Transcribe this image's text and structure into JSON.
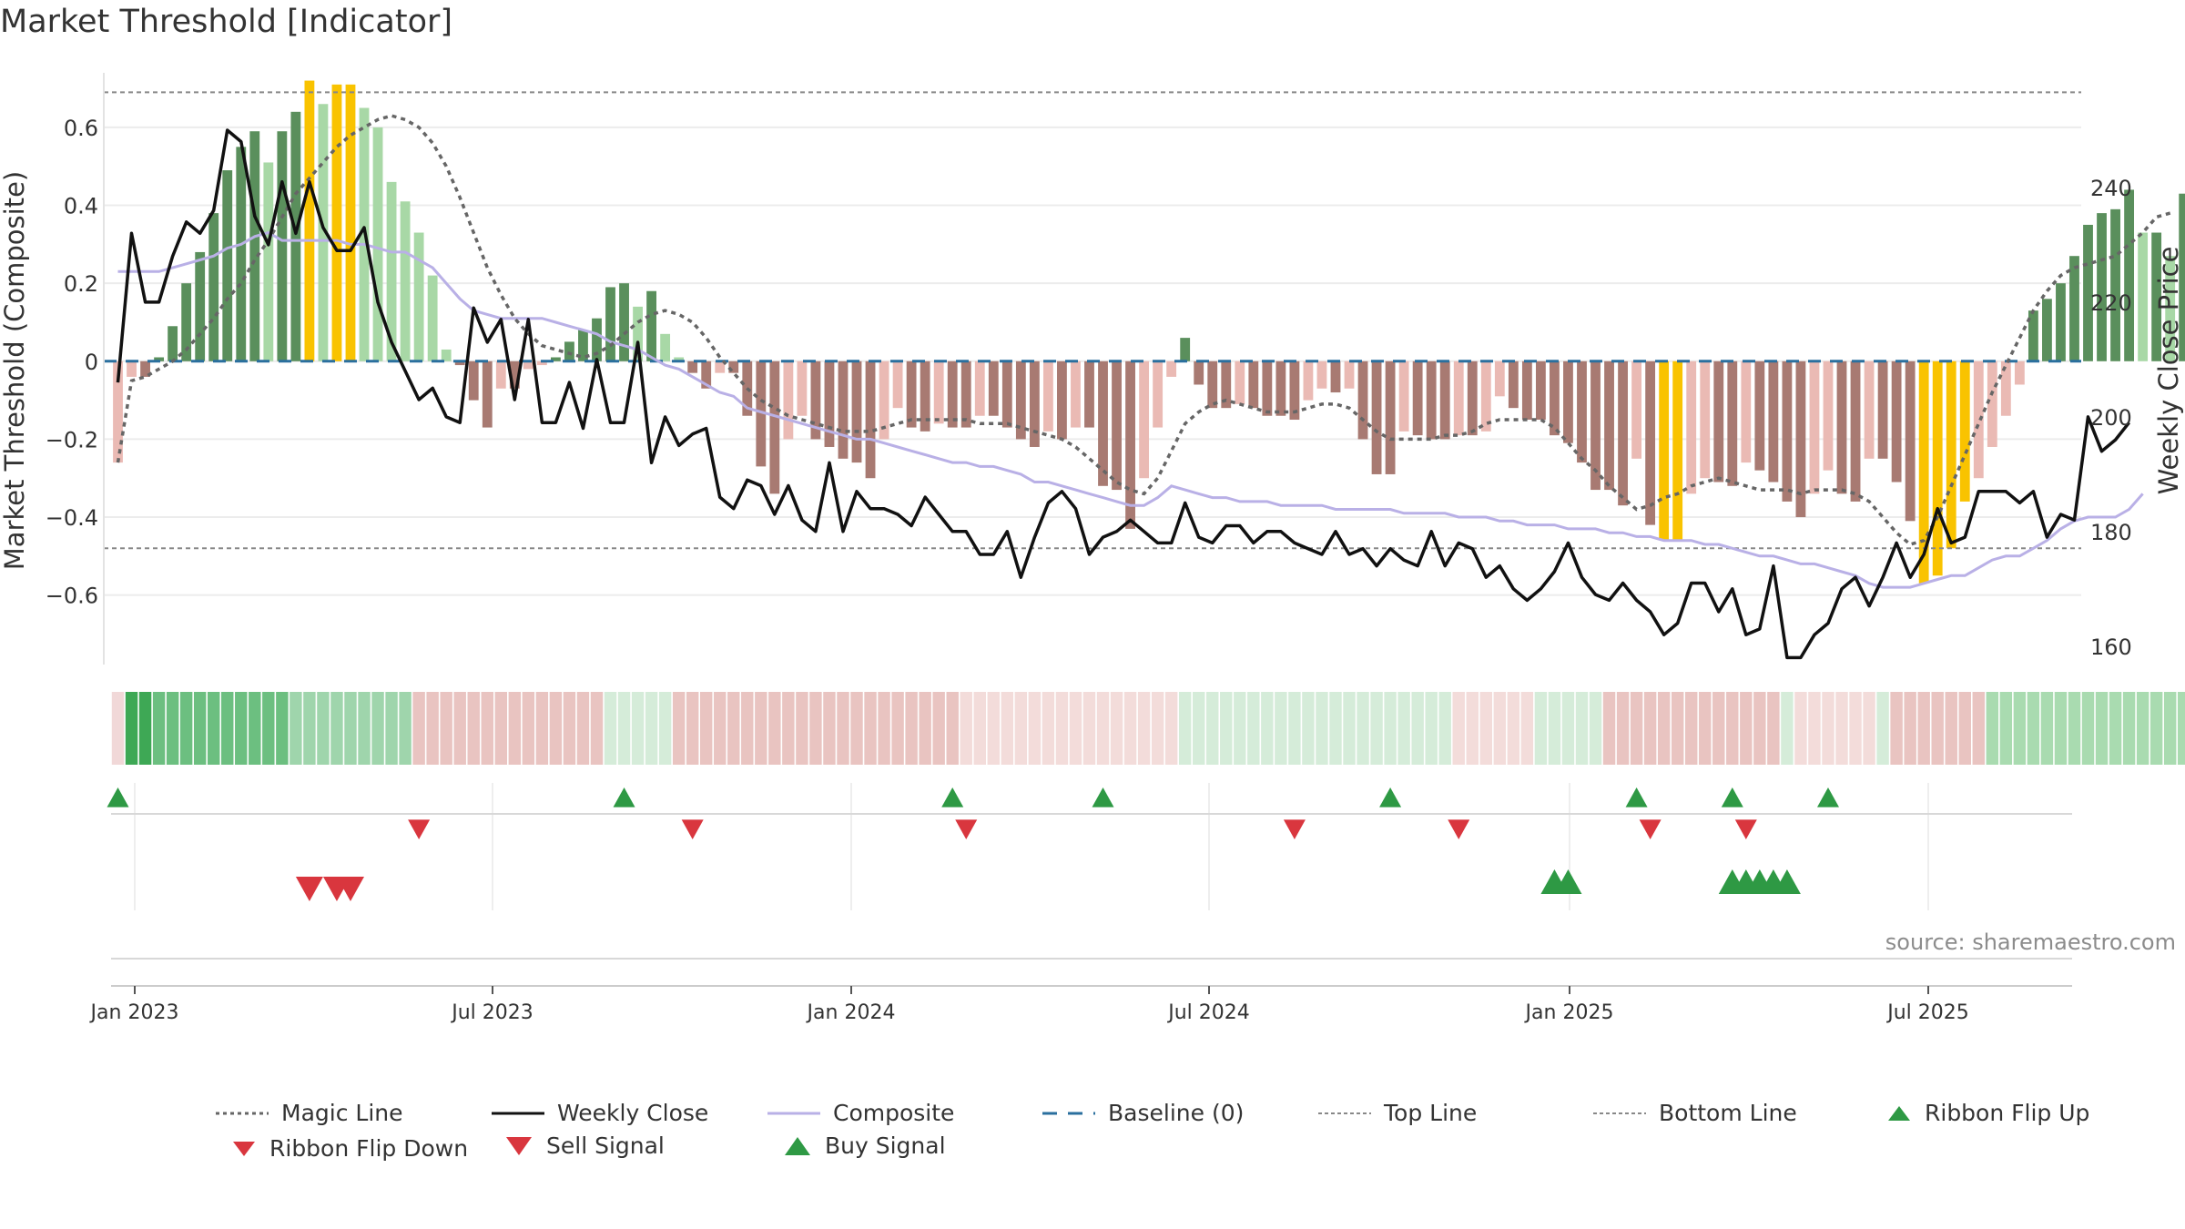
{
  "title": "Market Threshold [Indicator]",
  "source": "source: sharemaestro.com",
  "colors": {
    "bull_dark": "#5a8f5c",
    "bull_light": "#a8d8a6",
    "bear_dark": "#a87a72",
    "bear_light": "#eabab4",
    "extreme": "#f9c300",
    "magic": "#666666",
    "close": "#111111",
    "composite": "#b9b0e6",
    "baseline": "#2a6f9e",
    "ref_lines": "#888888",
    "buy": "#2e9944",
    "sell": "#d9363e"
  },
  "chart_data": {
    "type": "bar",
    "y_left_label": "Market Threshold (Composite)",
    "y_right_label": "Weekly Close Price",
    "y_left_ticks": [
      "0.6",
      "0.4",
      "0.2",
      "0",
      "−0.2",
      "−0.4",
      "−0.6"
    ],
    "y_left_tick_values": [
      0.6,
      0.4,
      0.2,
      0,
      -0.2,
      -0.4,
      -0.6
    ],
    "y_left_range": [
      -0.79,
      0.74
    ],
    "y_right_ticks": [
      "240",
      "220",
      "200",
      "180",
      "160"
    ],
    "y_right_tick_values": [
      240,
      220,
      200,
      180,
      160
    ],
    "y_right_range": [
      156,
      260
    ],
    "x_ticks": [
      "Jan 2023",
      "Jul 2023",
      "Jan 2024",
      "Jul 2024",
      "Jan 2025",
      "Jul 2025"
    ],
    "top_line": 0.69,
    "bottom_line": -0.48,
    "baseline": 0,
    "weeks": 144,
    "composite_bars": [
      -0.26,
      -0.04,
      -0.04,
      0.01,
      0.09,
      0.2,
      0.28,
      0.38,
      0.49,
      0.55,
      0.59,
      0.51,
      0.59,
      0.64,
      0.72,
      0.66,
      0.71,
      0.71,
      0.65,
      0.6,
      0.46,
      0.41,
      0.33,
      0.22,
      0.03,
      -0.01,
      -0.1,
      -0.17,
      -0.07,
      -0.07,
      -0.02,
      -0.01,
      0.01,
      0.05,
      0.08,
      0.11,
      0.19,
      0.2,
      0.14,
      0.18,
      0.07,
      0.01,
      -0.03,
      -0.07,
      -0.03,
      -0.03,
      -0.14,
      -0.27,
      -0.34,
      -0.2,
      -0.14,
      -0.2,
      -0.22,
      -0.25,
      -0.26,
      -0.3,
      -0.2,
      -0.12,
      -0.17,
      -0.18,
      -0.16,
      -0.17,
      -0.17,
      -0.14,
      -0.14,
      -0.17,
      -0.2,
      -0.22,
      -0.18,
      -0.2,
      -0.17,
      -0.17,
      -0.32,
      -0.33,
      -0.43,
      -0.3,
      -0.17,
      -0.04,
      0.06,
      -0.06,
      -0.12,
      -0.12,
      -0.11,
      -0.12,
      -0.14,
      -0.14,
      -0.15,
      -0.1,
      -0.07,
      -0.08,
      -0.07,
      -0.2,
      -0.29,
      -0.29,
      -0.18,
      -0.19,
      -0.2,
      -0.2,
      -0.19,
      -0.19,
      -0.18,
      -0.09,
      -0.12,
      -0.15,
      -0.15,
      -0.19,
      -0.21,
      -0.26,
      -0.33,
      -0.33,
      -0.37,
      -0.25,
      -0.42,
      -0.46,
      -0.46,
      -0.34,
      -0.3,
      -0.31,
      -0.32,
      -0.26,
      -0.28,
      -0.31,
      -0.36,
      -0.4,
      -0.34,
      -0.28,
      -0.34,
      -0.36,
      -0.25,
      -0.25,
      -0.31,
      -0.41,
      -0.57,
      -0.55,
      -0.48,
      -0.36,
      -0.3,
      -0.22,
      -0.14,
      -0.06,
      0.13,
      0.16,
      0.2,
      0.27,
      0.35,
      0.38,
      0.39,
      0.44,
      0.33,
      0.33,
      0.27,
      0.43
    ],
    "extreme_weeks": [
      14,
      16,
      17,
      113,
      114,
      132,
      133,
      134,
      135
    ],
    "magic_line": [
      -0.26,
      -0.05,
      -0.04,
      -0.02,
      0.0,
      0.03,
      0.07,
      0.11,
      0.16,
      0.2,
      0.26,
      0.31,
      0.37,
      0.43,
      0.47,
      0.51,
      0.55,
      0.58,
      0.6,
      0.62,
      0.63,
      0.62,
      0.6,
      0.56,
      0.5,
      0.42,
      0.33,
      0.24,
      0.17,
      0.11,
      0.07,
      0.04,
      0.03,
      0.02,
      0.01,
      0.02,
      0.04,
      0.07,
      0.1,
      0.12,
      0.13,
      0.12,
      0.1,
      0.06,
      0.01,
      -0.03,
      -0.07,
      -0.1,
      -0.12,
      -0.14,
      -0.15,
      -0.16,
      -0.17,
      -0.18,
      -0.18,
      -0.18,
      -0.17,
      -0.16,
      -0.15,
      -0.15,
      -0.15,
      -0.15,
      -0.15,
      -0.16,
      -0.16,
      -0.16,
      -0.17,
      -0.18,
      -0.19,
      -0.2,
      -0.22,
      -0.25,
      -0.28,
      -0.31,
      -0.33,
      -0.34,
      -0.3,
      -0.23,
      -0.16,
      -0.13,
      -0.11,
      -0.1,
      -0.11,
      -0.12,
      -0.13,
      -0.13,
      -0.13,
      -0.12,
      -0.11,
      -0.11,
      -0.12,
      -0.15,
      -0.18,
      -0.2,
      -0.2,
      -0.2,
      -0.2,
      -0.19,
      -0.19,
      -0.18,
      -0.16,
      -0.15,
      -0.15,
      -0.15,
      -0.15,
      -0.17,
      -0.21,
      -0.25,
      -0.28,
      -0.32,
      -0.35,
      -0.38,
      -0.37,
      -0.35,
      -0.34,
      -0.32,
      -0.31,
      -0.3,
      -0.31,
      -0.32,
      -0.33,
      -0.33,
      -0.33,
      -0.34,
      -0.33,
      -0.33,
      -0.33,
      -0.34,
      -0.36,
      -0.4,
      -0.44,
      -0.47,
      -0.46,
      -0.4,
      -0.32,
      -0.24,
      -0.16,
      -0.08,
      -0.01,
      0.06,
      0.13,
      0.18,
      0.22,
      0.24,
      0.25,
      0.26,
      0.27,
      0.3,
      0.33,
      0.37,
      0.38
    ],
    "composite_line": [
      0.23,
      0.23,
      0.23,
      0.23,
      0.24,
      0.25,
      0.26,
      0.27,
      0.29,
      0.3,
      0.32,
      0.33,
      0.31,
      0.31,
      0.31,
      0.31,
      0.31,
      0.3,
      0.3,
      0.29,
      0.28,
      0.28,
      0.26,
      0.24,
      0.2,
      0.16,
      0.13,
      0.12,
      0.11,
      0.11,
      0.11,
      0.11,
      0.1,
      0.09,
      0.08,
      0.07,
      0.05,
      0.04,
      0.03,
      0.01,
      -0.01,
      -0.02,
      -0.04,
      -0.06,
      -0.08,
      -0.09,
      -0.12,
      -0.13,
      -0.14,
      -0.15,
      -0.16,
      -0.17,
      -0.18,
      -0.19,
      -0.2,
      -0.2,
      -0.21,
      -0.22,
      -0.23,
      -0.24,
      -0.25,
      -0.26,
      -0.26,
      -0.27,
      -0.27,
      -0.28,
      -0.29,
      -0.31,
      -0.31,
      -0.32,
      -0.33,
      -0.34,
      -0.35,
      -0.36,
      -0.37,
      -0.37,
      -0.35,
      -0.32,
      -0.33,
      -0.34,
      -0.35,
      -0.35,
      -0.36,
      -0.36,
      -0.36,
      -0.37,
      -0.37,
      -0.37,
      -0.37,
      -0.38,
      -0.38,
      -0.38,
      -0.38,
      -0.38,
      -0.39,
      -0.39,
      -0.39,
      -0.39,
      -0.4,
      -0.4,
      -0.4,
      -0.41,
      -0.41,
      -0.42,
      -0.42,
      -0.42,
      -0.43,
      -0.43,
      -0.43,
      -0.44,
      -0.44,
      -0.45,
      -0.45,
      -0.46,
      -0.46,
      -0.46,
      -0.47,
      -0.47,
      -0.48,
      -0.49,
      -0.5,
      -0.5,
      -0.51,
      -0.52,
      -0.52,
      -0.53,
      -0.54,
      -0.55,
      -0.57,
      -0.58,
      -0.58,
      -0.58,
      -0.57,
      -0.56,
      -0.55,
      -0.55,
      -0.53,
      -0.51,
      -0.5,
      -0.5,
      -0.48,
      -0.46,
      -0.43,
      -0.41,
      -0.4,
      -0.4,
      -0.4,
      -0.38,
      -0.34
    ],
    "weekly_close": [
      206,
      232,
      220,
      220,
      228,
      234,
      232,
      236,
      250,
      248,
      235,
      230,
      241,
      232,
      241,
      233,
      229,
      229,
      233,
      220,
      213,
      208,
      203,
      205,
      200,
      199,
      219,
      213,
      217,
      203,
      217,
      199,
      199,
      206,
      198,
      210,
      199,
      199,
      213,
      192,
      200,
      195,
      197,
      198,
      186,
      184,
      189,
      188,
      183,
      188,
      182,
      180,
      192,
      180,
      187,
      184,
      184,
      183,
      181,
      186,
      183,
      180,
      180,
      176,
      176,
      180,
      172,
      179,
      185,
      187,
      184,
      176,
      179,
      180,
      182,
      180,
      178,
      178,
      185,
      179,
      178,
      181,
      181,
      178,
      180,
      180,
      178,
      177,
      176,
      180,
      176,
      177,
      174,
      177,
      175,
      174,
      180,
      174,
      178,
      177,
      172,
      174,
      170,
      168,
      170,
      173,
      178,
      172,
      169,
      168,
      171,
      168,
      166,
      162,
      164,
      171,
      171,
      166,
      170,
      162,
      163,
      174,
      158,
      158,
      162,
      164,
      170,
      172,
      167,
      172,
      178,
      172,
      176,
      184,
      178,
      179,
      187,
      187,
      187,
      185,
      187,
      179,
      183,
      182,
      200,
      194,
      196,
      199
    ],
    "ribbon": [
      "b1",
      "B3",
      "B3",
      "B2",
      "B2",
      "B2",
      "B2",
      "B2",
      "B2",
      "B2",
      "B2",
      "B2",
      "B2",
      "B1",
      "B1",
      "B1",
      "B1",
      "B1",
      "B1",
      "B1",
      "B1",
      "B1",
      "r2",
      "r2",
      "r2",
      "r2",
      "r2",
      "r2",
      "r2",
      "r2",
      "r2",
      "r2",
      "r2",
      "r2",
      "r2",
      "r2",
      "g1",
      "g1",
      "g1",
      "g1",
      "g1",
      "r2",
      "r2",
      "r2",
      "r2",
      "r2",
      "r2",
      "r2",
      "r2",
      "r2",
      "r2",
      "r2",
      "r2",
      "r2",
      "r2",
      "r2",
      "r2",
      "r2",
      "r2",
      "r2",
      "r2",
      "r2",
      "r1",
      "r1",
      "r1",
      "r1",
      "r1",
      "r1",
      "r1",
      "r1",
      "r1",
      "r1",
      "r1",
      "r1",
      "r1",
      "r1",
      "r1",
      "r1",
      "g1",
      "g1",
      "g1",
      "g1",
      "g1",
      "g1",
      "g1",
      "g1",
      "g1",
      "g1",
      "g1",
      "g1",
      "g1",
      "g1",
      "g1",
      "g1",
      "g1",
      "g1",
      "g1",
      "g1",
      "r1",
      "r1",
      "r1",
      "r1",
      "r1",
      "r1",
      "g1",
      "g1",
      "g1",
      "g1",
      "g1",
      "r2",
      "r2",
      "r2",
      "r2",
      "r2",
      "r2",
      "r2",
      "r2",
      "r2",
      "r2",
      "r2",
      "r2",
      "r2",
      "g1",
      "r1",
      "r1",
      "r1",
      "r1",
      "r1",
      "r1",
      "g1",
      "r2",
      "r2",
      "r2",
      "r2",
      "r2",
      "r2",
      "r2",
      "g2",
      "g2",
      "g2",
      "g2",
      "g2",
      "g2",
      "g2",
      "g2",
      "g2",
      "g2",
      "g2",
      "g2",
      "g2",
      "g2",
      "g2",
      "g2",
      "g2",
      "g2",
      "g2"
    ],
    "ribbon_flip_up": [
      0,
      37,
      61,
      72,
      93,
      111,
      118,
      125
    ],
    "ribbon_flip_down": [
      22,
      42,
      62,
      86,
      98,
      112,
      119
    ],
    "buy_signal": [
      105,
      106,
      118,
      119,
      120,
      121,
      122
    ],
    "sell_signal": [
      14,
      16,
      17
    ],
    "legend": [
      {
        "key": "magic",
        "label": "Magic Line"
      },
      {
        "key": "close",
        "label": "Weekly Close"
      },
      {
        "key": "composite",
        "label": "Composite"
      },
      {
        "key": "baseline",
        "label": "Baseline (0)"
      },
      {
        "key": "top",
        "label": "Top Line"
      },
      {
        "key": "bottom",
        "label": "Bottom Line"
      },
      {
        "key": "flipup",
        "label": "Ribbon Flip Up"
      },
      {
        "key": "flipdown",
        "label": "Ribbon Flip Down"
      },
      {
        "key": "sell",
        "label": "Sell Signal"
      },
      {
        "key": "buy",
        "label": "Buy Signal"
      }
    ]
  }
}
